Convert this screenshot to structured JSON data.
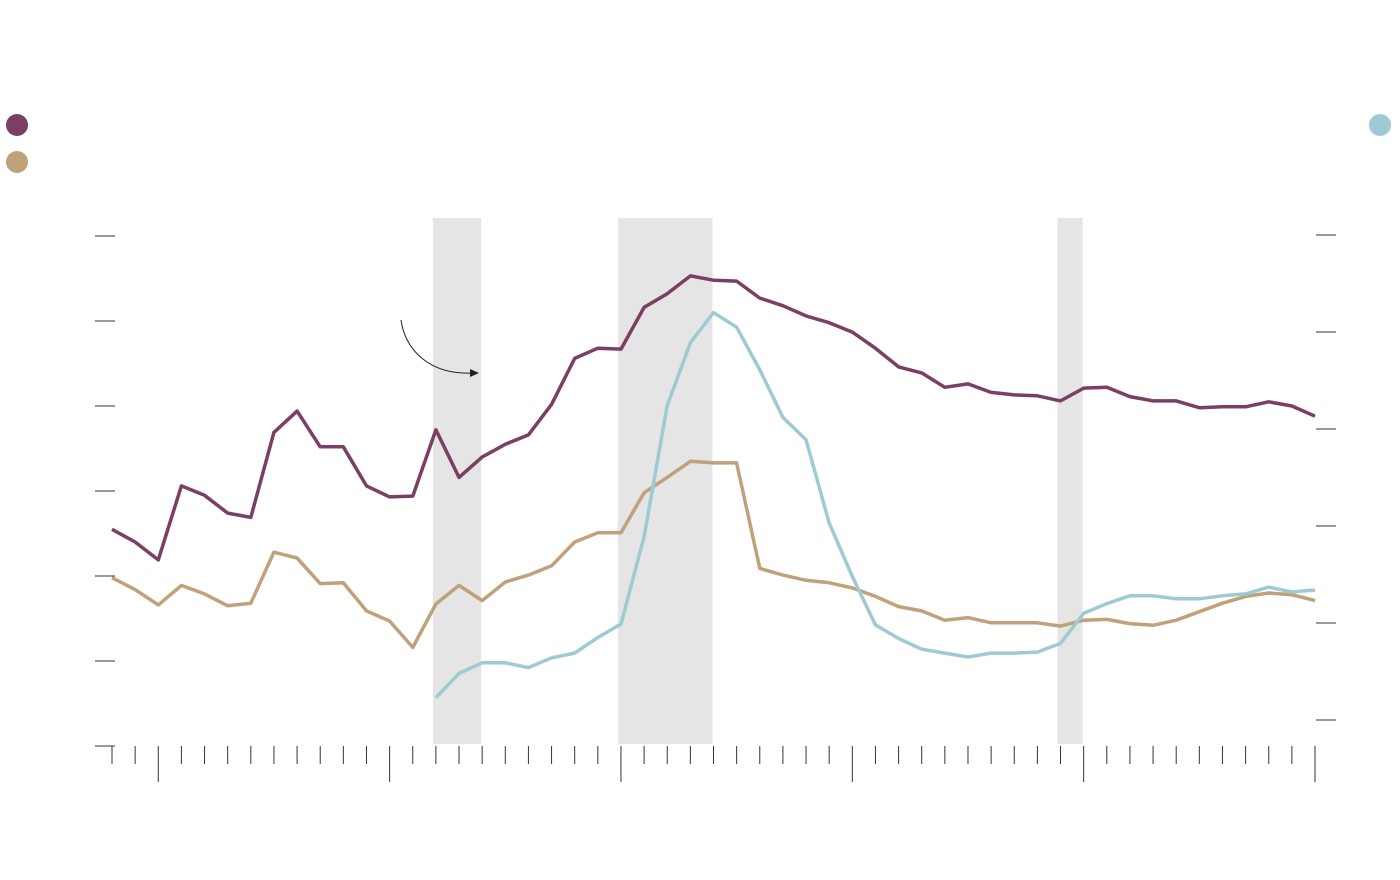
{
  "chart_data": {
    "type": "line",
    "categories": [
      null,
      null,
      null,
      null,
      null,
      null,
      null,
      null,
      null,
      null,
      null,
      null,
      null,
      null,
      null,
      null,
      null,
      null,
      null,
      null,
      null,
      null,
      null,
      null,
      null,
      null,
      null,
      null,
      null,
      null,
      null,
      null,
      null,
      null,
      null,
      null,
      null,
      null,
      null,
      null,
      null,
      null,
      null,
      null,
      null,
      null,
      null,
      null,
      null,
      null,
      null,
      null,
      null
    ],
    "series": [
      {
        "color": "#7b3f63",
        "values": [
          2.55,
          2.4,
          2.19,
          3.06,
          2.95,
          2.74,
          2.69,
          3.69,
          3.94,
          3.52,
          3.52,
          3.06,
          2.93,
          2.94,
          3.72,
          3.16,
          3.4,
          3.55,
          3.66,
          4.02,
          4.56,
          4.68,
          4.67,
          5.16,
          5.32,
          5.53,
          5.48,
          5.47,
          5.27,
          5.18,
          5.06,
          4.98,
          4.87,
          4.68,
          4.46,
          4.39,
          4.22,
          4.26,
          4.16,
          4.13,
          4.12,
          4.06,
          4.21,
          4.22,
          4.11,
          4.06,
          4.06,
          3.98,
          3.99,
          3.99,
          4.05,
          4.0,
          3.88
        ]
      },
      {
        "color": "#bfa27a",
        "values": [
          1.98,
          1.84,
          1.66,
          1.89,
          1.79,
          1.65,
          1.68,
          2.28,
          2.21,
          1.91,
          1.92,
          1.59,
          1.47,
          1.16,
          1.67,
          1.89,
          1.71,
          1.93,
          2.01,
          2.12,
          2.4,
          2.51,
          2.51,
          2.98,
          3.16,
          3.35,
          3.33,
          3.33,
          2.09,
          2.01,
          1.95,
          1.92,
          1.86,
          1.76,
          1.64,
          1.59,
          1.48,
          1.51,
          1.45,
          1.45,
          1.45,
          1.41,
          1.48,
          1.49,
          1.44,
          1.42,
          1.48,
          1.58,
          1.68,
          1.76,
          1.8,
          1.78,
          1.71
        ]
      },
      {
        "color": "#9ecad4",
        "axis": "y2",
        "values": [
          null,
          null,
          null,
          null,
          null,
          null,
          null,
          null,
          null,
          null,
          null,
          null,
          null,
          null,
          0.23,
          0.48,
          0.59,
          0.59,
          0.54,
          0.64,
          0.69,
          0.85,
          0.99,
          1.89,
          3.24,
          3.89,
          4.2,
          4.05,
          3.61,
          3.12,
          2.89,
          2.03,
          1.48,
          0.98,
          0.84,
          0.73,
          0.69,
          0.65,
          0.69,
          0.69,
          0.7,
          0.79,
          1.1,
          1.2,
          1.28,
          1.28,
          1.25,
          1.25,
          1.28,
          1.3,
          1.37,
          1.32,
          1.34
        ]
      }
    ],
    "shaded_ranges": [
      [
        14,
        16
      ],
      [
        22,
        26
      ],
      [
        41,
        42
      ]
    ],
    "ylim": [
      0,
      6
    ],
    "yticks": [
      0,
      1,
      2,
      3,
      4,
      5,
      6
    ],
    "y2lim": [
      0,
      5
    ],
    "y2ticks": [
      0,
      1,
      2,
      3,
      4,
      5
    ],
    "shade_color": "#e5e5e5"
  }
}
